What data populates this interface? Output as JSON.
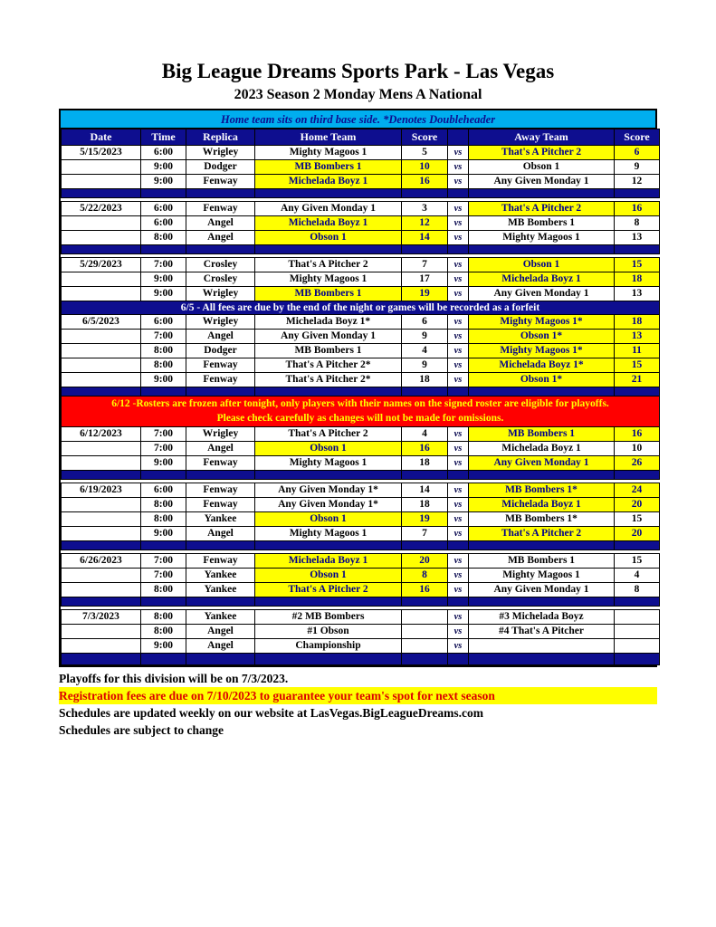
{
  "page": {
    "title": "Big League Dreams Sports Park - Las Vegas",
    "subtitle": "2023 Season 2 Monday Mens A National",
    "banner": "Home team sits on third base side.  *Denotes Doubleheader"
  },
  "colors": {
    "navy": "#0E0E8F",
    "cyan": "#00AEEF",
    "highlight_yellow": "#FFFF00",
    "notice_red_bg": "#FF0000",
    "notice_red_text": "#FFFF00",
    "winner_text_navy": "#00008B",
    "registration_text_red": "#DD0000"
  },
  "table": {
    "headers": [
      "Date",
      "Time",
      "Replica",
      "Home Team",
      "Score",
      "",
      "Away Team",
      "Score"
    ],
    "vs_label": "vs",
    "rows": [
      {
        "type": "game",
        "date": "5/15/2023",
        "time": "6:00",
        "replica": "Wrigley",
        "home": "Mighty Magoos 1",
        "home_score": "5",
        "away": "That's A Pitcher 2",
        "away_score": "6",
        "win": "away"
      },
      {
        "type": "game",
        "date": "",
        "time": "9:00",
        "replica": "Dodger",
        "home": "MB Bombers 1",
        "home_score": "10",
        "away": "Obson 1",
        "away_score": "9",
        "win": "home"
      },
      {
        "type": "game",
        "date": "",
        "time": "9:00",
        "replica": "Fenway",
        "home": "Michelada Boyz 1",
        "home_score": "16",
        "away": "Any Given Monday 1",
        "away_score": "12",
        "win": "home"
      },
      {
        "type": "separator"
      },
      {
        "type": "gap"
      },
      {
        "type": "game",
        "date": "5/22/2023",
        "time": "6:00",
        "replica": "Fenway",
        "home": "Any Given Monday 1",
        "home_score": "3",
        "away": "That's A Pitcher 2",
        "away_score": "16",
        "win": "away"
      },
      {
        "type": "game",
        "date": "",
        "time": "6:00",
        "replica": "Angel",
        "home": "Michelada Boyz 1",
        "home_score": "12",
        "away": "MB Bombers 1",
        "away_score": "8",
        "win": "home"
      },
      {
        "type": "game",
        "date": "",
        "time": "8:00",
        "replica": "Angel",
        "home": "Obson 1",
        "home_score": "14",
        "away": "Mighty Magoos 1",
        "away_score": "13",
        "win": "home"
      },
      {
        "type": "separator"
      },
      {
        "type": "gap"
      },
      {
        "type": "game",
        "date": "5/29/2023",
        "time": "7:00",
        "replica": "Crosley",
        "home": "That's A Pitcher 2",
        "home_score": "7",
        "away": "Obson 1",
        "away_score": "15",
        "win": "away"
      },
      {
        "type": "game",
        "date": "",
        "time": "9:00",
        "replica": "Crosley",
        "home": "Mighty Magoos 1",
        "home_score": "17",
        "away": "Michelada Boyz 1",
        "away_score": "18",
        "win": "away"
      },
      {
        "type": "game",
        "date": "",
        "time": "9:00",
        "replica": "Wrigley",
        "home": "MB Bombers 1",
        "home_score": "19",
        "away": "Any Given Monday 1",
        "away_score": "13",
        "win": "home"
      },
      {
        "type": "notice_navy",
        "text": "6/5 - All fees are due by the end of the night or games will be recorded as a forfeit"
      },
      {
        "type": "game",
        "date": "6/5/2023",
        "time": "6:00",
        "replica": "Wrigley",
        "home": "Michelada Boyz 1*",
        "home_score": "6",
        "away": "Mighty Magoos 1*",
        "away_score": "18",
        "win": "away"
      },
      {
        "type": "game",
        "date": "",
        "time": "7:00",
        "replica": "Angel",
        "home": "Any Given Monday 1",
        "home_score": "9",
        "away": "Obson 1*",
        "away_score": "13",
        "win": "away"
      },
      {
        "type": "game",
        "date": "",
        "time": "8:00",
        "replica": "Dodger",
        "home": "MB Bombers 1",
        "home_score": "4",
        "away": "Mighty Magoos 1*",
        "away_score": "11",
        "win": "away"
      },
      {
        "type": "game",
        "date": "",
        "time": "8:00",
        "replica": "Fenway",
        "home": "That's A Pitcher 2*",
        "home_score": "9",
        "away": "Michelada Boyz 1*",
        "away_score": "15",
        "win": "away"
      },
      {
        "type": "game",
        "date": "",
        "time": "9:00",
        "replica": "Fenway",
        "home": "That's A Pitcher 2*",
        "home_score": "18",
        "away": "Obson 1*",
        "away_score": "21",
        "win": "away"
      },
      {
        "type": "separator"
      },
      {
        "type": "notice_red",
        "lines": [
          "6/12 -Rosters are frozen after tonight, only players with their names on the signed roster are eligible for playoffs.",
          "Please check carefully as changes will not be made for omissions."
        ]
      },
      {
        "type": "game",
        "date": "6/12/2023",
        "time": "7:00",
        "replica": "Wrigley",
        "home": "That's A Pitcher 2",
        "home_score": "4",
        "away": "MB Bombers 1",
        "away_score": "16",
        "win": "away"
      },
      {
        "type": "game",
        "date": "",
        "time": "7:00",
        "replica": "Angel",
        "home": "Obson 1",
        "home_score": "16",
        "away": "Michelada Boyz 1",
        "away_score": "10",
        "win": "home"
      },
      {
        "type": "game",
        "date": "",
        "time": "9:00",
        "replica": "Fenway",
        "home": "Mighty Magoos 1",
        "home_score": "18",
        "away": "Any Given Monday 1",
        "away_score": "26",
        "win": "away"
      },
      {
        "type": "separator"
      },
      {
        "type": "gap"
      },
      {
        "type": "game",
        "date": "6/19/2023",
        "time": "6:00",
        "replica": "Fenway",
        "home": "Any Given Monday 1*",
        "home_score": "14",
        "away": "MB Bombers 1*",
        "away_score": "24",
        "win": "away"
      },
      {
        "type": "game",
        "date": "",
        "time": "8:00",
        "replica": "Fenway",
        "home": "Any Given Monday 1*",
        "home_score": "18",
        "away": "Michelada Boyz 1",
        "away_score": "20",
        "win": "away"
      },
      {
        "type": "game",
        "date": "",
        "time": "8:00",
        "replica": "Yankee",
        "home": "Obson 1",
        "home_score": "19",
        "away": "MB Bombers 1*",
        "away_score": "15",
        "win": "home"
      },
      {
        "type": "game",
        "date": "",
        "time": "9:00",
        "replica": "Angel",
        "home": "Mighty Magoos 1",
        "home_score": "7",
        "away": "That's A Pitcher 2",
        "away_score": "20",
        "win": "away"
      },
      {
        "type": "separator"
      },
      {
        "type": "gap"
      },
      {
        "type": "game",
        "date": "6/26/2023",
        "time": "7:00",
        "replica": "Fenway",
        "home": "Michelada Boyz 1",
        "home_score": "20",
        "away": "MB Bombers 1",
        "away_score": "15",
        "win": "home"
      },
      {
        "type": "game",
        "date": "",
        "time": "7:00",
        "replica": "Yankee",
        "home": "Obson 1",
        "home_score": "8",
        "away": "Mighty Magoos 1",
        "away_score": "4",
        "win": "home"
      },
      {
        "type": "game",
        "date": "",
        "time": "8:00",
        "replica": "Yankee",
        "home": "That's A Pitcher 2",
        "home_score": "16",
        "away": "Any Given Monday 1",
        "away_score": "8",
        "win": "home"
      },
      {
        "type": "separator"
      },
      {
        "type": "gap"
      },
      {
        "type": "game",
        "date": "7/3/2023",
        "time": "8:00",
        "replica": "Yankee",
        "home": "#2 MB Bombers",
        "home_score": "",
        "away": "#3 Michelada Boyz",
        "away_score": "",
        "win": "none"
      },
      {
        "type": "game",
        "date": "",
        "time": "8:00",
        "replica": "Angel",
        "home": "#1 Obson",
        "home_score": "",
        "away": "#4 That's A Pitcher",
        "away_score": "",
        "win": "none"
      },
      {
        "type": "game",
        "date": "",
        "time": "9:00",
        "replica": "Angel",
        "home": "Championship",
        "home_score": "",
        "away": "",
        "away_score": "",
        "win": "none"
      },
      {
        "type": "separator",
        "final": true
      }
    ]
  },
  "footer": {
    "playoffs": "Playoffs for this division will be on 7/3/2023.",
    "registration": "Registration fees are due on 7/10/2023 to guarantee your team's spot for next season",
    "website": "Schedules are updated weekly on our website at LasVegas.BigLeagueDreams.com",
    "subject_to_change": "Schedules are subject to change"
  }
}
